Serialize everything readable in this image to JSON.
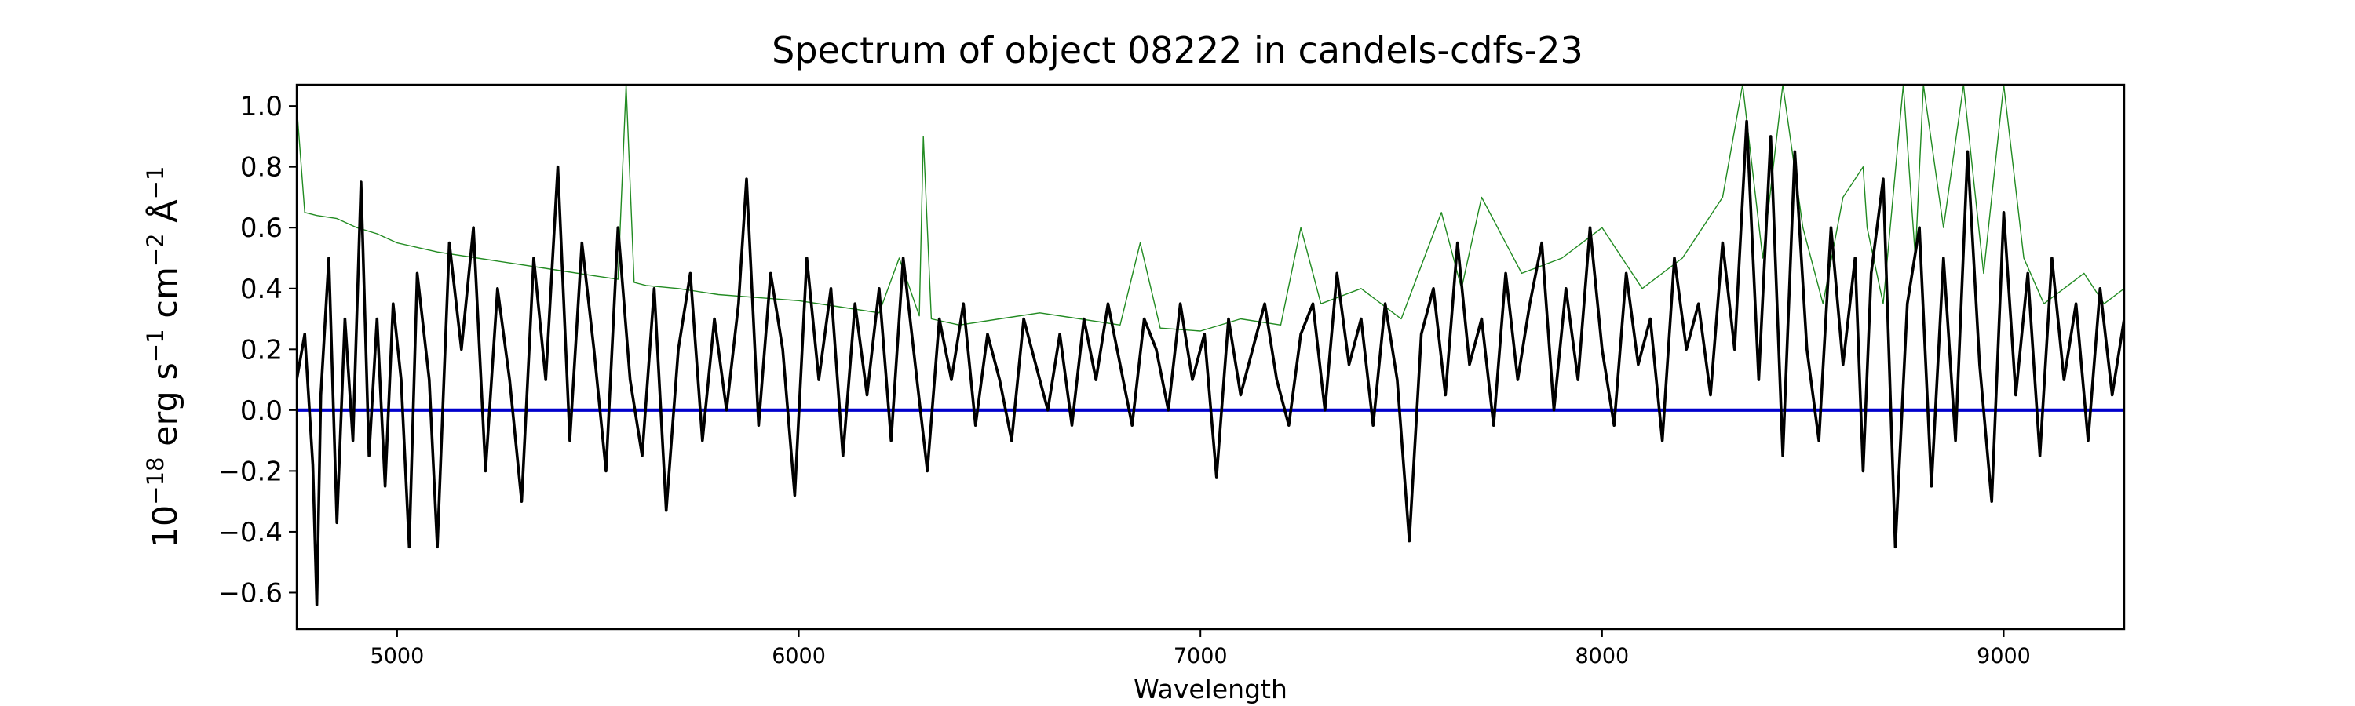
{
  "chart_data": {
    "type": "line",
    "title": "Spectrum of object 08222 in candels-cdfs-23",
    "xlabel": "Wavelength",
    "ylabel": {
      "base": "10",
      "base_exp": "−18",
      "erg": " erg s",
      "s_exp": "−1",
      "cm": " cm",
      "cm_exp": "−2",
      "ang": " Å",
      "ang_exp": "−1"
    },
    "xlim": [
      4750,
      9300
    ],
    "ylim": [
      -0.72,
      1.07
    ],
    "xticks": [
      5000,
      6000,
      7000,
      8000,
      9000
    ],
    "xtick_labels": [
      "5000",
      "6000",
      "7000",
      "8000",
      "9000"
    ],
    "yticks": [
      -0.6,
      -0.4,
      -0.2,
      0.0,
      0.2,
      0.4,
      0.6,
      0.8,
      1.0
    ],
    "ytick_labels": [
      "−0.6",
      "−0.4",
      "−0.2",
      "0.0",
      "0.2",
      "0.4",
      "0.6",
      "0.8",
      "1.0"
    ],
    "grid": false,
    "legend": "none",
    "colors": {
      "flux": "#000000",
      "error": "#228b22",
      "zero": "#0000cc"
    },
    "series": [
      {
        "role": "flux",
        "style": "thick black line",
        "x": [
          4750,
          4770,
          4790,
          4800,
          4810,
          4830,
          4850,
          4870,
          4890,
          4910,
          4930,
          4950,
          4970,
          4990,
          5010,
          5030,
          5050,
          5080,
          5100,
          5130,
          5160,
          5190,
          5220,
          5250,
          5280,
          5310,
          5340,
          5370,
          5400,
          5430,
          5460,
          5490,
          5520,
          5550,
          5580,
          5610,
          5640,
          5670,
          5700,
          5730,
          5760,
          5790,
          5820,
          5850,
          5870,
          5900,
          5930,
          5960,
          5990,
          6020,
          6050,
          6080,
          6110,
          6140,
          6170,
          6200,
          6230,
          6260,
          6290,
          6320,
          6350,
          6380,
          6410,
          6440,
          6470,
          6500,
          6530,
          6560,
          6590,
          6620,
          6650,
          6680,
          6710,
          6740,
          6770,
          6800,
          6830,
          6860,
          6890,
          6920,
          6950,
          6980,
          7010,
          7040,
          7070,
          7100,
          7130,
          7160,
          7190,
          7220,
          7250,
          7280,
          7310,
          7340,
          7370,
          7400,
          7430,
          7460,
          7490,
          7520,
          7550,
          7580,
          7610,
          7640,
          7670,
          7700,
          7730,
          7760,
          7790,
          7820,
          7850,
          7880,
          7910,
          7940,
          7970,
          8000,
          8030,
          8060,
          8090,
          8120,
          8150,
          8180,
          8210,
          8240,
          8270,
          8300,
          8330,
          8360,
          8390,
          8420,
          8450,
          8480,
          8510,
          8540,
          8570,
          8600,
          8630,
          8650,
          8670,
          8700,
          8730,
          8760,
          8790,
          8820,
          8850,
          8880,
          8910,
          8940,
          8970,
          9000,
          9030,
          9060,
          9090,
          9120,
          9150,
          9180,
          9210,
          9240,
          9270,
          9300
        ],
        "y": [
          0.1,
          0.25,
          -0.18,
          -0.64,
          0.05,
          0.5,
          -0.37,
          0.3,
          -0.1,
          0.75,
          -0.15,
          0.3,
          -0.25,
          0.35,
          0.1,
          -0.45,
          0.45,
          0.1,
          -0.45,
          0.55,
          0.2,
          0.6,
          -0.2,
          0.4,
          0.1,
          -0.3,
          0.5,
          0.1,
          0.8,
          -0.1,
          0.55,
          0.2,
          -0.2,
          0.6,
          0.1,
          -0.15,
          0.4,
          -0.33,
          0.2,
          0.45,
          -0.1,
          0.3,
          0.0,
          0.35,
          0.76,
          -0.05,
          0.45,
          0.2,
          -0.28,
          0.5,
          0.1,
          0.4,
          -0.15,
          0.35,
          0.05,
          0.4,
          -0.1,
          0.5,
          0.15,
          -0.2,
          0.3,
          0.1,
          0.35,
          -0.05,
          0.25,
          0.1,
          -0.1,
          0.3,
          0.15,
          0.0,
          0.25,
          -0.05,
          0.3,
          0.1,
          0.35,
          0.15,
          -0.05,
          0.3,
          0.2,
          0.0,
          0.35,
          0.1,
          0.25,
          -0.22,
          0.3,
          0.05,
          0.2,
          0.35,
          0.1,
          -0.05,
          0.25,
          0.35,
          0.0,
          0.45,
          0.15,
          0.3,
          -0.05,
          0.35,
          0.1,
          -0.43,
          0.25,
          0.4,
          0.05,
          0.55,
          0.15,
          0.3,
          -0.05,
          0.45,
          0.1,
          0.35,
          0.55,
          0.0,
          0.4,
          0.1,
          0.6,
          0.2,
          -0.05,
          0.45,
          0.15,
          0.3,
          -0.1,
          0.5,
          0.2,
          0.35,
          0.05,
          0.55,
          0.2,
          0.95,
          0.1,
          0.9,
          -0.15,
          0.85,
          0.2,
          -0.1,
          0.6,
          0.15,
          0.5,
          -0.2,
          0.45,
          0.76,
          -0.45,
          0.35,
          0.6,
          -0.25,
          0.5,
          -0.1,
          0.85,
          0.15,
          -0.3,
          0.65,
          0.05,
          0.45,
          -0.15,
          0.5,
          0.1,
          0.35,
          -0.1,
          0.4,
          0.05,
          0.3
        ]
      },
      {
        "role": "error",
        "style": "thin green line",
        "x": [
          4750,
          4770,
          4800,
          4850,
          4900,
          4950,
          5000,
          5100,
          5200,
          5300,
          5400,
          5500,
          5550,
          5570,
          5590,
          5620,
          5700,
          5800,
          5900,
          6000,
          6100,
          6200,
          6250,
          6300,
          6310,
          6330,
          6400,
          6500,
          6600,
          6700,
          6800,
          6850,
          6900,
          7000,
          7100,
          7200,
          7250,
          7300,
          7400,
          7500,
          7600,
          7650,
          7700,
          7800,
          7900,
          8000,
          8100,
          8200,
          8300,
          8350,
          8400,
          8450,
          8500,
          8550,
          8600,
          8650,
          8660,
          8700,
          8750,
          8780,
          8800,
          8850,
          8900,
          8950,
          9000,
          9050,
          9100,
          9150,
          9200,
          9250,
          9300
        ],
        "y": [
          1.0,
          0.65,
          0.64,
          0.63,
          0.6,
          0.58,
          0.55,
          0.52,
          0.5,
          0.48,
          0.46,
          0.44,
          0.43,
          1.07,
          0.42,
          0.41,
          0.4,
          0.38,
          0.37,
          0.36,
          0.34,
          0.32,
          0.5,
          0.31,
          0.9,
          0.3,
          0.28,
          0.3,
          0.32,
          0.3,
          0.28,
          0.55,
          0.27,
          0.26,
          0.3,
          0.28,
          0.6,
          0.35,
          0.4,
          0.3,
          0.65,
          0.4,
          0.7,
          0.45,
          0.5,
          0.6,
          0.4,
          0.5,
          0.7,
          1.07,
          0.5,
          1.07,
          0.6,
          0.35,
          0.7,
          0.8,
          0.6,
          0.35,
          1.07,
          0.5,
          1.07,
          0.6,
          1.07,
          0.45,
          1.07,
          0.5,
          0.35,
          0.4,
          0.45,
          0.35,
          0.4
        ]
      },
      {
        "role": "zero",
        "style": "blue zero line",
        "x": [
          4750,
          9300
        ],
        "y": [
          0.0,
          0.0
        ]
      }
    ]
  }
}
